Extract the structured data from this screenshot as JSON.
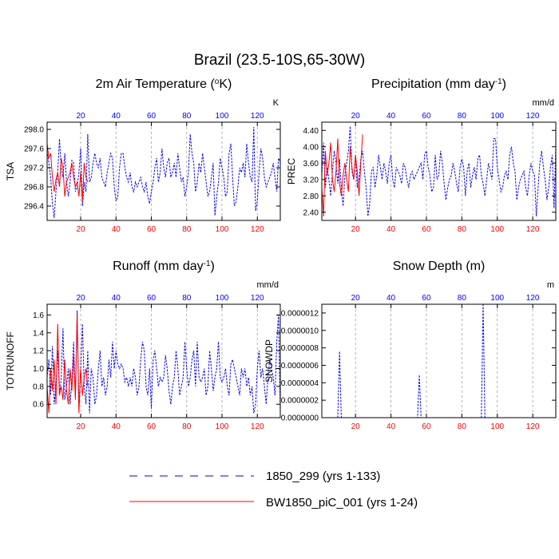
{
  "figure_title": "Brazil (23.5-10S,65-30W)",
  "legend": {
    "entries": [
      {
        "label": "1850_299 (yrs 1-133)",
        "color": "#0000ff",
        "dash": true
      },
      {
        "label": "BW1850_piC_001 (yrs 1-24)",
        "color": "#ff0000",
        "dash": false
      }
    ]
  },
  "colors": {
    "series_a": "#0000ff",
    "series_b": "#ff0000",
    "grid": "#a0a0a0",
    "axis": "#000000"
  },
  "chart_data": [
    {
      "type": "line",
      "title": "2m Air Temperature (",
      "title_sup": "o",
      "title_after": "K)",
      "ylabel": "TSA",
      "units": "K",
      "xlim": [
        1,
        133
      ],
      "ylim": [
        296.1,
        298.15
      ],
      "yticks": [
        296.4,
        296.8,
        297.2,
        297.6,
        298.0
      ],
      "ytick_labels": [
        "296.4",
        "296.8",
        "297.2",
        "297.6",
        "298.0"
      ],
      "xticks_bottom": [
        20,
        40,
        60,
        80,
        100,
        120
      ],
      "xticks_bottom_labels": [
        "20",
        "40",
        "60",
        "80",
        "100",
        "120"
      ],
      "xticks_top": [
        20,
        40,
        60,
        80,
        100,
        120
      ],
      "xticks_top_labels": [
        "20",
        "40",
        "60",
        "80",
        "100",
        "120"
      ],
      "series": [
        {
          "name": "1850_299 (yrs 1-133)",
          "x_start": 1,
          "values": [
            297.55,
            297.3,
            297.0,
            296.45,
            296.15,
            296.7,
            297.1,
            297.8,
            297.2,
            297.0,
            297.5,
            296.9,
            296.6,
            296.9,
            297.35,
            297.3,
            296.7,
            296.8,
            297.1,
            297.6,
            296.4,
            296.9,
            296.7,
            297.9,
            296.9,
            297.0,
            297.3,
            297.5,
            297.3,
            297.2,
            297.4,
            297.0,
            296.9,
            296.8,
            297.1,
            297.3,
            297.5,
            297.4,
            296.8,
            296.5,
            296.6,
            297.2,
            297.5,
            297.5,
            297.2,
            297.0,
            296.9,
            297.1,
            296.8,
            296.7,
            296.9,
            296.8,
            296.9,
            297.0,
            296.8,
            296.7,
            296.9,
            296.6,
            296.45,
            296.7,
            296.9,
            297.2,
            297.4,
            296.9,
            297.1,
            297.6,
            297.2,
            297.0,
            297.3,
            297.4,
            297.0,
            297.1,
            297.3,
            297.0,
            297.5,
            297.2,
            296.9,
            297.0,
            296.6,
            296.8,
            297.1,
            297.9,
            297.5,
            297.3,
            296.7,
            296.9,
            297.3,
            297.1,
            297.5,
            297.2,
            296.9,
            296.6,
            296.7,
            297.0,
            297.3,
            296.2,
            296.6,
            296.9,
            297.4,
            297.2,
            297.0,
            296.6,
            296.7,
            297.5,
            297.7,
            297.0,
            296.4,
            296.5,
            296.8,
            297.2,
            297.1,
            297.3,
            297.0,
            297.7,
            297.3,
            297.0,
            296.9,
            298.05,
            296.3,
            296.5,
            297.1,
            297.6,
            297.4,
            297.0,
            296.8,
            296.9,
            297.0,
            297.1,
            297.3,
            297.0,
            296.7,
            297.4,
            297.3
          ]
        },
        {
          "name": "BW1850_piC_001 (yrs 1-24)",
          "x_start": 1,
          "values": [
            297.7,
            297.4,
            297.5,
            297.0,
            296.7,
            296.95,
            297.1,
            296.8,
            297.4,
            297.2,
            296.6,
            296.9,
            297.0,
            297.1,
            297.3,
            297.0,
            296.8,
            296.9,
            296.6,
            297.1,
            296.5,
            297.3,
            297.0,
            296.9
          ]
        }
      ]
    },
    {
      "type": "line",
      "title": "Precipitation (mm day",
      "title_sup": "-1",
      "title_after": ")",
      "ylabel": "PREC",
      "units": "mm/d",
      "xlim": [
        1,
        133
      ],
      "ylim": [
        2.2,
        4.6
      ],
      "yticks": [
        2.4,
        2.8,
        3.2,
        3.6,
        4.0,
        4.4
      ],
      "ytick_labels": [
        "2.40",
        "2.80",
        "3.20",
        "3.60",
        "4.00",
        "4.40"
      ],
      "xticks_bottom": [
        20,
        40,
        60,
        80,
        100,
        120
      ],
      "xticks_bottom_labels": [
        "20",
        "40",
        "60",
        "80",
        "100",
        "120"
      ],
      "xticks_top": [
        20,
        40,
        60,
        80,
        100,
        120
      ],
      "xticks_top_labels": [
        "20",
        "40",
        "60",
        "80",
        "100",
        "120"
      ],
      "series": [
        {
          "name": "1850_299 (yrs 1-133)",
          "x_start": 1,
          "values": [
            3.3,
            4.1,
            3.0,
            3.5,
            3.2,
            2.8,
            3.4,
            3.9,
            3.6,
            3.1,
            3.7,
            3.0,
            2.55,
            3.3,
            3.6,
            3.9,
            4.5,
            3.4,
            3.2,
            3.8,
            3.0,
            3.2,
            3.7,
            3.9,
            3.4,
            3.0,
            2.3,
            2.6,
            3.4,
            3.5,
            3.0,
            3.3,
            3.8,
            3.5,
            3.2,
            3.6,
            3.4,
            3.1,
            3.6,
            3.8,
            3.2,
            3.0,
            3.5,
            3.4,
            3.3,
            3.1,
            3.6,
            3.5,
            3.2,
            3.0,
            3.3,
            3.4,
            3.2,
            3.3,
            3.4,
            3.5,
            3.6,
            3.2,
            3.8,
            3.9,
            3.5,
            3.3,
            2.9,
            3.0,
            3.8,
            3.2,
            3.3,
            3.9,
            3.6,
            3.1,
            2.7,
            3.0,
            3.2,
            3.3,
            3.6,
            3.4,
            3.1,
            2.9,
            3.5,
            3.7,
            3.5,
            2.8,
            3.4,
            3.6,
            3.0,
            3.3,
            3.5,
            3.2,
            3.7,
            3.8,
            3.3,
            3.1,
            2.8,
            3.2,
            3.6,
            3.4,
            3.2,
            4.2,
            4.2,
            3.5,
            3.2,
            2.9,
            3.0,
            3.3,
            3.4,
            3.2,
            3.8,
            4.0,
            3.6,
            3.4,
            2.7,
            3.0,
            3.2,
            3.3,
            3.4,
            3.0,
            2.8,
            3.3,
            3.6,
            3.4,
            3.3,
            2.3,
            3.0,
            3.6,
            3.9,
            3.5,
            3.2,
            2.7,
            3.0,
            3.5,
            3.8,
            2.5,
            4.0
          ]
        },
        {
          "name": "BW1850_piC_001 (yrs 1-24)",
          "x_start": 1,
          "values": [
            3.0,
            2.3,
            3.9,
            3.3,
            3.6,
            4.1,
            3.2,
            2.9,
            3.4,
            4.2,
            3.1,
            2.8,
            3.3,
            3.6,
            3.2,
            2.9,
            4.0,
            3.5,
            3.2,
            3.8,
            3.4,
            2.8,
            3.6,
            4.3
          ]
        }
      ]
    },
    {
      "type": "line",
      "title": "Runoff (mm day",
      "title_sup": "-1",
      "title_after": ")",
      "ylabel": "TOTRUNOFF",
      "units": "mm/d",
      "xlim": [
        1,
        133
      ],
      "ylim": [
        0.45,
        1.72
      ],
      "yticks": [
        0.6,
        0.8,
        1.0,
        1.2,
        1.4,
        1.6
      ],
      "ytick_labels": [
        "0.6",
        "0.8",
        "1.0",
        "1.2",
        "1.4",
        "1.6"
      ],
      "xticks_bottom": [
        20,
        40,
        60,
        80,
        100,
        120
      ],
      "xticks_bottom_labels": [
        "20",
        "40",
        "60",
        "80",
        "100",
        "120"
      ],
      "xticks_top": [
        20,
        40,
        60,
        80,
        100,
        120
      ],
      "xticks_top_labels": [
        "20",
        "40",
        "60",
        "80",
        "100",
        "120"
      ],
      "series": [
        {
          "name": "1850_299 (yrs 1-133)",
          "x_start": 1,
          "values": [
            0.9,
            1.1,
            0.7,
            1.25,
            0.6,
            0.8,
            1.2,
            0.7,
            0.9,
            1.45,
            0.65,
            0.8,
            1.0,
            0.6,
            0.85,
            1.3,
            0.7,
            1.65,
            0.55,
            1.0,
            1.5,
            0.8,
            0.6,
            1.2,
            0.5,
            1.0,
            0.9,
            0.6,
            0.7,
            1.0,
            1.2,
            0.8,
            0.9,
            0.7,
            0.8,
            1.1,
            0.9,
            1.3,
            1.0,
            1.2,
            1.05,
            1.0,
            1.05,
            1.0,
            0.85,
            0.9,
            0.8,
            0.9,
            0.8,
            1.0,
            0.9,
            0.7,
            0.8,
            1.1,
            1.3,
            1.2,
            0.8,
            0.7,
            1.0,
            0.55,
            1.1,
            1.2,
            1.0,
            0.8,
            0.9,
            0.85,
            0.9,
            1.15,
            1.0,
            0.75,
            0.6,
            0.8,
            0.9,
            1.2,
            1.0,
            0.7,
            0.8,
            0.9,
            1.3,
            1.0,
            0.8,
            0.9,
            1.1,
            1.2,
            0.8,
            1.3,
            0.9,
            0.85,
            0.9,
            1.0,
            0.7,
            0.8,
            1.2,
            1.0,
            0.75,
            0.9,
            1.0,
            1.3,
            0.9,
            0.85,
            0.9,
            1.0,
            0.8,
            0.7,
            1.05,
            1.1,
            1.0,
            0.9,
            0.8,
            0.7,
            1.0,
            0.9,
            1.0,
            0.8,
            0.9,
            0.7,
            0.8,
            0.5,
            0.6,
            1.0,
            1.2,
            0.9,
            1.0,
            0.8,
            0.6,
            0.9,
            1.1,
            1.0,
            0.9,
            0.7,
            1.3,
            1.6,
            0.5
          ]
        },
        {
          "name": "BW1850_piC_001 (yrs 1-24)",
          "x_start": 1,
          "values": [
            0.8,
            0.5,
            1.0,
            0.75,
            1.1,
            0.6,
            1.5,
            0.7,
            0.8,
            0.65,
            1.1,
            0.75,
            0.6,
            1.0,
            0.75,
            1.15,
            0.65,
            1.6,
            0.5,
            1.0,
            0.7,
            0.9,
            1.0,
            0.8
          ]
        }
      ]
    },
    {
      "type": "line",
      "title": "Snow Depth (m)",
      "title_sup": "",
      "title_after": "",
      "ylabel": "SNOWDP",
      "units": "m",
      "xlim": [
        1,
        133
      ],
      "ylim": [
        0,
        1.3e-06
      ],
      "yticks": [
        0.0,
        2e-07,
        4e-07,
        6e-07,
        8e-07,
        1e-06,
        1.2e-06
      ],
      "ytick_labels": [
        "0.0000000",
        "0.0000002",
        "0.0000004",
        "0.0000006",
        "0.0000008",
        "0.0000010",
        "0.0000012"
      ],
      "xticks_bottom": [
        20,
        40,
        60,
        80,
        100,
        120
      ],
      "xticks_bottom_labels": [
        "20",
        "40",
        "60",
        "80",
        "100",
        "120"
      ],
      "xticks_top": [
        20,
        40,
        60,
        80,
        100,
        120
      ],
      "xticks_top_labels": [
        "20",
        "40",
        "60",
        "80",
        "100",
        "120"
      ],
      "series": [
        {
          "name": "1850_299 (yrs 1-133)",
          "x_start": 1,
          "values": [
            0,
            0,
            0,
            0,
            0,
            0,
            0,
            0,
            0,
            0,
            7.6e-07,
            0,
            0,
            0,
            0,
            0,
            0,
            0,
            0,
            0,
            0,
            0,
            0,
            0,
            0,
            0,
            0,
            0,
            0,
            0,
            0,
            0,
            0,
            0,
            0,
            0,
            0,
            0,
            0,
            0,
            0,
            0,
            0,
            0,
            0,
            0,
            0,
            0,
            0,
            0,
            0,
            0,
            0,
            0,
            0,
            4.9e-07,
            0,
            0,
            0,
            0,
            0,
            0,
            0,
            0,
            0,
            0,
            0,
            0,
            0,
            0,
            0,
            0,
            0,
            0,
            0,
            0,
            0,
            0,
            0,
            0,
            0,
            0,
            0,
            0,
            0,
            0,
            0,
            0,
            0,
            0,
            0,
            1.31e-06,
            0,
            0,
            0,
            0,
            0,
            0,
            0,
            0,
            0,
            0,
            0,
            0,
            0,
            0,
            0,
            0,
            0,
            0,
            0,
            0,
            0,
            0,
            0,
            0,
            0,
            0,
            0,
            0,
            0,
            0,
            0,
            0,
            0,
            0,
            0,
            0,
            0
          ]
        }
      ]
    }
  ]
}
